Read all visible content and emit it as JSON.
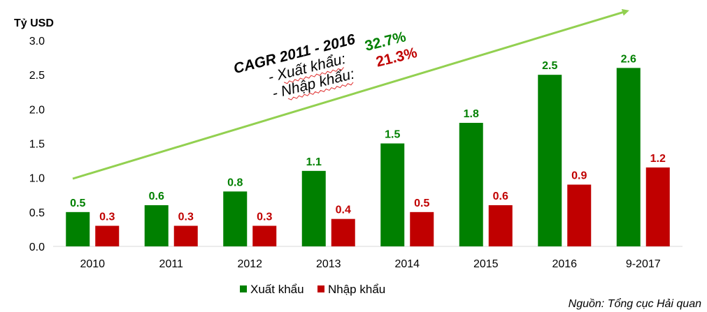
{
  "chart_data": {
    "type": "bar",
    "ylabel": "Tỷ USD",
    "ylim": [
      0,
      3.0
    ],
    "yticks": [
      "0.0",
      "0.5",
      "1.0",
      "1.5",
      "2.0",
      "2.5",
      "3.0"
    ],
    "grid": false,
    "categories": [
      "2010",
      "2011",
      "2012",
      "2013",
      "2014",
      "2015",
      "2016",
      "9-2017"
    ],
    "series": [
      {
        "name": "Xuất khẩu",
        "color": "#008000",
        "values": [
          0.5,
          0.6,
          0.8,
          1.1,
          1.5,
          1.8,
          2.5,
          2.6
        ],
        "labels": [
          "0.5",
          "0.6",
          "0.8",
          "1.1",
          "1.5",
          "1.8",
          "2.5",
          "2.6"
        ]
      },
      {
        "name": "Nhập khẩu",
        "color": "#C00000",
        "values": [
          0.3,
          0.3,
          0.3,
          0.4,
          0.5,
          0.6,
          0.9,
          1.15
        ],
        "labels": [
          "0.3",
          "0.3",
          "0.3",
          "0.4",
          "0.5",
          "0.6",
          "0.9",
          "1.2"
        ]
      }
    ],
    "legend_position": "bottom",
    "annotation": {
      "title": "CAGR 2011 - 2016",
      "rows": [
        {
          "label": "- Xuất khẩu:",
          "value": "32.7%",
          "color": "#008000"
        },
        {
          "label": "- Nhập khẩu:",
          "value": "21.3%",
          "color": "#C00000"
        }
      ],
      "arrow_color": "#92D050"
    },
    "source": "Nguồn: Tổng cục Hải quan"
  }
}
